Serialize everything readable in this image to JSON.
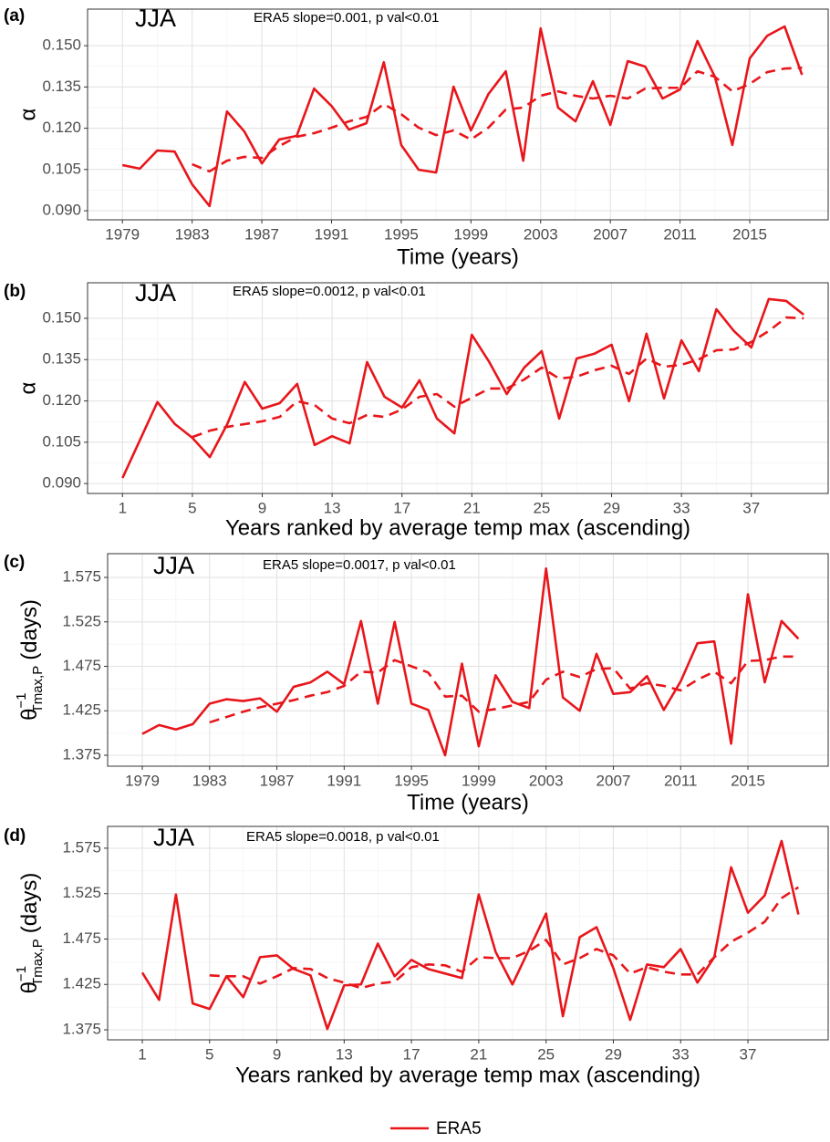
{
  "chart_data": [
    {
      "type": "line",
      "panel": "(a)",
      "season": "JJA",
      "annotation": "ERA5 slope=0.001, p val<0.01",
      "xlabel": "Time (years)",
      "ylabel": "α",
      "x": [
        1979,
        1980,
        1981,
        1982,
        1983,
        1984,
        1985,
        1986,
        1987,
        1988,
        1989,
        1990,
        1991,
        1992,
        1993,
        1994,
        1995,
        1996,
        1997,
        1998,
        1999,
        2000,
        2001,
        2002,
        2003,
        2004,
        2005,
        2006,
        2007,
        2008,
        2009,
        2010,
        2011,
        2012,
        2013,
        2014,
        2015,
        2016,
        2017,
        2018
      ],
      "xlim": [
        1977,
        2019.5
      ],
      "xticks": [
        1979,
        1983,
        1987,
        1991,
        1995,
        1999,
        2003,
        2007,
        2011,
        2015
      ],
      "ylim": [
        0.0867,
        0.1633
      ],
      "yticks": [
        {
          "value": 0.09,
          "label": "0.090"
        },
        0.105,
        {
          "value": 0.12,
          "label": "0.120"
        },
        0.135,
        {
          "value": 0.15,
          "label": "0.150"
        }
      ],
      "grid": true,
      "series": [
        {
          "name": "ERA5",
          "color": "#e8161b",
          "style": "solid",
          "values": [
            0.1066,
            0.1053,
            0.1119,
            0.1115,
            0.0996,
            0.0917,
            0.1261,
            0.1188,
            0.1072,
            0.1159,
            0.1172,
            0.1344,
            0.1281,
            0.1195,
            0.1218,
            0.144,
            0.1139,
            0.1049,
            0.1039,
            0.1351,
            0.1192,
            0.1324,
            0.1407,
            0.1082,
            0.1563,
            0.1275,
            0.1225,
            0.1371,
            0.1212,
            0.1444,
            0.1424,
            0.1308,
            0.1341,
            0.1517,
            0.1387,
            0.1139,
            0.1454,
            0.1536,
            0.157,
            0.1394
          ]
        },
        {
          "color": "#e8161b",
          "style": "dashed",
          "values": [
            null,
            null,
            null,
            null,
            0.1069,
            0.1043,
            0.1082,
            0.1096,
            0.1092,
            0.1135,
            0.1169,
            0.1182,
            0.1202,
            0.1225,
            0.1241,
            0.1288,
            0.1251,
            0.1202,
            0.1175,
            0.1192,
            0.1159,
            0.1202,
            0.1268,
            0.1275,
            0.1318,
            0.1334,
            0.1318,
            0.1308,
            0.1318,
            0.1308,
            0.1344,
            0.1347,
            0.1347,
            0.1407,
            0.1387,
            0.1334,
            0.1361,
            0.1404,
            0.1417,
            0.142
          ]
        }
      ]
    },
    {
      "type": "line",
      "panel": "(b)",
      "season": "JJA",
      "annotation": "ERA5 slope=0.0012, p val<0.01",
      "xlabel": "Years ranked by average temp max (ascending)",
      "ylabel": "α",
      "x": [
        1,
        2,
        3,
        4,
        5,
        6,
        7,
        8,
        9,
        10,
        11,
        12,
        13,
        14,
        15,
        16,
        17,
        18,
        19,
        20,
        21,
        22,
        23,
        24,
        25,
        26,
        27,
        28,
        29,
        30,
        31,
        32,
        33,
        34,
        35,
        36,
        37,
        38,
        39,
        40
      ],
      "xlim": [
        -1,
        41.4
      ],
      "xticks": [
        1,
        5,
        9,
        13,
        17,
        21,
        25,
        29,
        33,
        37
      ],
      "ylim": [
        0.0864,
        0.1629
      ],
      "yticks": [
        {
          "value": 0.09,
          "label": "0.090"
        },
        0.105,
        {
          "value": 0.12,
          "label": "0.120"
        },
        0.135,
        {
          "value": 0.15,
          "label": "0.150"
        }
      ],
      "grid": true,
      "series": [
        {
          "name": "ERA5",
          "color": "#e8161b",
          "style": "solid",
          "values": [
            0.092,
            0.1058,
            0.1196,
            0.1116,
            0.1066,
            0.0996,
            0.1116,
            0.1269,
            0.1172,
            0.1192,
            0.1262,
            0.104,
            0.1072,
            0.1046,
            0.1341,
            0.1215,
            0.1176,
            0.1275,
            0.1136,
            0.1082,
            0.144,
            0.1341,
            0.1225,
            0.1321,
            0.1381,
            0.1136,
            0.1354,
            0.1371,
            0.1404,
            0.1199,
            0.1444,
            0.1209,
            0.142,
            0.1308,
            0.1533,
            0.1454,
            0.1394,
            0.157,
            0.1563,
            0.1513
          ]
        },
        {
          "color": "#e8161b",
          "style": "dashed",
          "values": [
            null,
            null,
            null,
            null,
            0.1069,
            0.1092,
            0.1106,
            0.1116,
            0.1126,
            0.1142,
            0.1199,
            0.1185,
            0.1136,
            0.1119,
            0.1149,
            0.1142,
            0.1169,
            0.1215,
            0.1225,
            0.1179,
            0.1212,
            0.1245,
            0.1245,
            0.1278,
            0.1321,
            0.1281,
            0.1288,
            0.1311,
            0.1328,
            0.1298,
            0.1354,
            0.1324,
            0.1331,
            0.1351,
            0.1384,
            0.1387,
            0.1414,
            0.1454,
            0.1503,
            0.15
          ]
        }
      ]
    },
    {
      "type": "line",
      "panel": "(c)",
      "season": "JJA",
      "annotation": "ERA5 slope=0.0017, p val<0.01",
      "xlabel": "Time (years)",
      "ylabel": {
        "symbol": "θ",
        "sup": "−1",
        "sub": "Tmax,P",
        "unit": "(days)"
      },
      "x": [
        1979,
        1980,
        1981,
        1982,
        1983,
        1984,
        1985,
        1986,
        1987,
        1988,
        1989,
        1990,
        1991,
        1992,
        1993,
        1994,
        1995,
        1996,
        1997,
        1998,
        1999,
        2000,
        2001,
        2002,
        2003,
        2004,
        2005,
        2006,
        2007,
        2008,
        2009,
        2010,
        2011,
        2012,
        2013,
        2014,
        2015,
        2016,
        2017,
        2018
      ],
      "xlim": [
        1976.94,
        2019.77
      ],
      "xticks": [
        1979,
        1983,
        1987,
        1991,
        1995,
        1999,
        2003,
        2007,
        2011,
        2015
      ],
      "ylim": [
        1.3627,
        1.6017
      ],
      "yticks": [
        1.375,
        1.425,
        1.475,
        1.525,
        1.575
      ],
      "grid": true,
      "series": [
        {
          "name": "ERA5",
          "color": "#e8161b",
          "style": "solid",
          "values": [
            1.399,
            1.409,
            1.404,
            1.41,
            1.433,
            1.438,
            1.436,
            1.439,
            1.424,
            1.452,
            1.457,
            1.469,
            1.455,
            1.526,
            1.433,
            1.525,
            1.433,
            1.426,
            1.375,
            1.478,
            1.385,
            1.465,
            1.435,
            1.428,
            1.585,
            1.44,
            1.425,
            1.489,
            1.444,
            1.446,
            1.464,
            1.426,
            1.458,
            1.501,
            1.503,
            1.388,
            1.556,
            1.457,
            1.526,
            1.506
          ]
        },
        {
          "color": "#e8161b",
          "style": "dashed",
          "values": [
            null,
            null,
            null,
            null,
            1.412,
            1.418,
            1.424,
            1.429,
            1.433,
            1.437,
            1.442,
            1.446,
            1.453,
            1.469,
            1.468,
            1.482,
            1.475,
            1.468,
            1.441,
            1.442,
            1.424,
            1.427,
            1.431,
            1.435,
            1.46,
            1.469,
            1.463,
            1.472,
            1.473,
            1.45,
            1.456,
            1.453,
            1.448,
            1.46,
            1.469,
            1.456,
            1.481,
            1.482,
            1.486,
            1.486
          ]
        }
      ]
    },
    {
      "type": "line",
      "panel": "(d)",
      "season": "JJA",
      "annotation": "ERA5 slope=0.0018, p val<0.01",
      "xlabel": "Years ranked by average temp max (ascending)",
      "ylabel": {
        "symbol": "θ",
        "sup": "−1",
        "sub": "Tmax,P",
        "unit": "(days)"
      },
      "x": [
        1,
        2,
        3,
        4,
        5,
        6,
        7,
        8,
        9,
        10,
        11,
        12,
        13,
        14,
        15,
        16,
        17,
        18,
        19,
        20,
        21,
        22,
        23,
        24,
        25,
        26,
        27,
        28,
        29,
        30,
        31,
        32,
        33,
        34,
        35,
        36,
        37,
        38,
        39,
        40
      ],
      "xlim": [
        -1.06,
        41.77
      ],
      "xticks": [
        1,
        5,
        9,
        13,
        17,
        21,
        25,
        29,
        33,
        37
      ],
      "ylim": [
        1.364,
        1.599
      ],
      "yticks": [
        1.375,
        1.425,
        1.475,
        1.525,
        1.575
      ],
      "grid": true,
      "series": [
        {
          "name": "ERA5",
          "color": "#e8161b",
          "style": "solid",
          "values": [
            1.438,
            1.408,
            1.524,
            1.404,
            1.398,
            1.434,
            1.411,
            1.455,
            1.457,
            1.442,
            1.435,
            1.376,
            1.424,
            1.425,
            1.47,
            1.434,
            1.452,
            1.442,
            1.437,
            1.432,
            1.524,
            1.461,
            1.425,
            1.464,
            1.503,
            1.39,
            1.477,
            1.488,
            1.443,
            1.386,
            1.447,
            1.444,
            1.464,
            1.427,
            1.455,
            1.554,
            1.504,
            1.523,
            1.583,
            1.502
          ]
        },
        {
          "color": "#e8161b",
          "style": "dashed",
          "values": [
            null,
            null,
            null,
            null,
            1.435,
            1.434,
            1.434,
            1.426,
            1.434,
            1.443,
            1.442,
            1.432,
            1.427,
            1.421,
            1.426,
            1.428,
            1.444,
            1.447,
            1.446,
            1.439,
            1.455,
            1.454,
            1.454,
            1.462,
            1.474,
            1.447,
            1.454,
            1.464,
            1.457,
            1.437,
            1.444,
            1.439,
            1.436,
            1.436,
            1.455,
            1.472,
            1.482,
            1.494,
            1.52,
            1.532
          ]
        }
      ]
    }
  ]
}
